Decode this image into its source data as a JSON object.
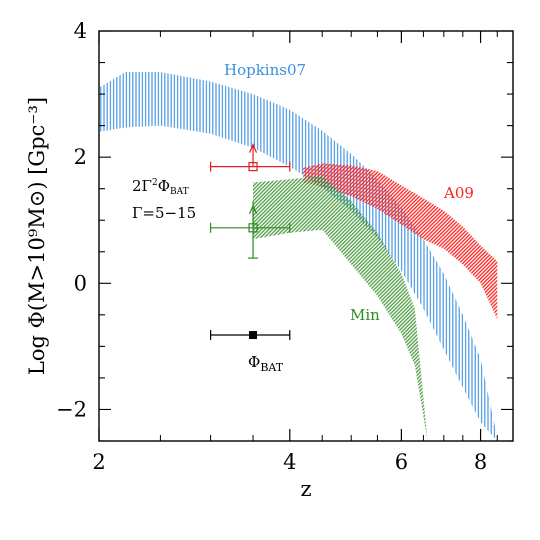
{
  "chart_data": {
    "type": "area",
    "xlabel": "z",
    "ylabel": "Log Φ(M>10⁹M⊙) [Gpc⁻³]",
    "x_scale": "log",
    "xlim": [
      2,
      9
    ],
    "ylim": [
      -2.5,
      4
    ],
    "x_ticks": [
      2,
      4,
      6,
      8
    ],
    "y_ticks": [
      -2,
      0,
      2,
      4
    ],
    "x_tick_labels": [
      "2",
      "4",
      "6",
      "8"
    ],
    "y_tick_labels": [
      "−2",
      "0",
      "2",
      "4"
    ],
    "series": [
      {
        "name": "Hopkins07",
        "color": "#3a8fe0",
        "hatch": "vertical",
        "x": [
          2.0,
          2.2,
          2.5,
          3.0,
          3.5,
          4.0,
          4.5,
          5.0,
          5.5,
          6.0,
          6.5,
          7.0,
          7.5,
          8.0,
          8.5
        ],
        "upper": [
          3.1,
          3.35,
          3.35,
          3.2,
          3.0,
          2.75,
          2.42,
          2.05,
          1.65,
          1.2,
          0.7,
          0.15,
          -0.5,
          -1.2,
          -2.45
        ],
        "lower": [
          2.4,
          2.47,
          2.5,
          2.37,
          2.15,
          1.85,
          1.52,
          1.15,
          0.72,
          0.2,
          -0.4,
          -1.05,
          -1.65,
          -2.2,
          -2.5
        ]
      },
      {
        "name": "A09",
        "color": "#ff2020",
        "hatch": "diagonal",
        "x": [
          4.2,
          4.5,
          5.0,
          5.5,
          6.0,
          6.5,
          7.0,
          7.5,
          8.0,
          8.5
        ],
        "upper": [
          1.83,
          1.9,
          1.87,
          1.78,
          1.55,
          1.35,
          1.15,
          0.9,
          0.6,
          0.35
        ],
        "lower": [
          1.6,
          1.53,
          1.38,
          1.18,
          0.93,
          0.7,
          0.55,
          0.3,
          0.0,
          -0.57
        ]
      },
      {
        "name": "Min",
        "color": "#2e8b22",
        "hatch": "diagonal",
        "x": [
          3.5,
          4.0,
          4.5,
          5.0,
          5.5,
          6.0,
          6.3,
          6.6
        ],
        "upper": [
          1.6,
          1.65,
          1.7,
          1.3,
          0.8,
          0.15,
          -0.4,
          -2.5
        ],
        "lower": [
          0.7,
          0.8,
          0.85,
          0.3,
          -0.2,
          -0.8,
          -1.3,
          -2.5
        ]
      }
    ],
    "points": [
      {
        "x": 3.5,
        "y": 1.85,
        "xerr": [
          3.0,
          4.0
        ],
        "color": "#e02020",
        "marker": "open-square",
        "arrow": "up"
      },
      {
        "x": 3.5,
        "y": 0.88,
        "xerr": [
          3.0,
          4.0
        ],
        "yerr": [
          0.4,
          1.3
        ],
        "color": "#2e8b22",
        "marker": "open-square",
        "arrow": "up"
      },
      {
        "x": 3.5,
        "y": -0.82,
        "xerr": [
          3.0,
          4.0
        ],
        "color": "#000000",
        "marker": "filled-square"
      }
    ],
    "annotations": {
      "hopkins": "Hopkins07",
      "a09": "A09",
      "min": "Min",
      "phi_bat": "Φ",
      "phi_bat_sub": "BAT",
      "two_gamma_main": "2Γ",
      "two_gamma_sup": "2",
      "two_gamma_phi": "Φ",
      "two_gamma_sub": "BAT",
      "gamma_range": "Γ=5−15"
    }
  }
}
